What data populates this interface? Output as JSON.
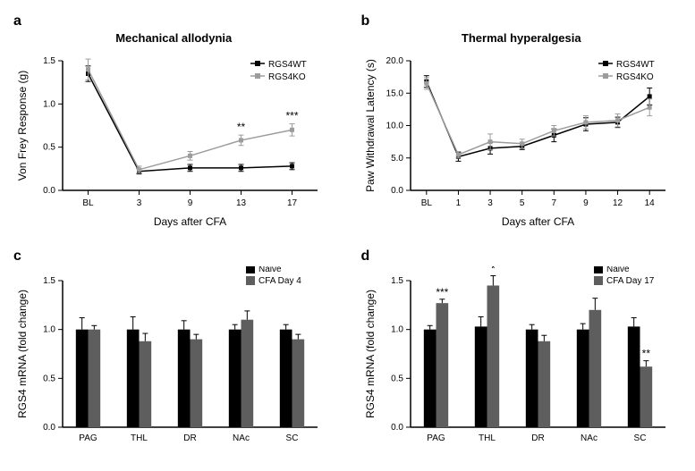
{
  "panelA": {
    "label": "a",
    "title": "Mechanical allodynia",
    "type": "line",
    "xlabel": "Days after CFA",
    "ylabel": "Von Frey Response (g)",
    "x_categories": [
      "BL",
      "3",
      "9",
      "13",
      "17"
    ],
    "ylim": [
      0.0,
      1.5
    ],
    "yticks": [
      0.0,
      0.5,
      1.0,
      1.5
    ],
    "series": [
      {
        "name": "RGS4WT",
        "color": "#000000",
        "marker": "square",
        "y": [
          1.35,
          0.22,
          0.26,
          0.26,
          0.28
        ],
        "err": [
          0.09,
          0.03,
          0.04,
          0.04,
          0.04
        ]
      },
      {
        "name": "RGS4KO",
        "color": "#9c9c9c",
        "marker": "square",
        "y": [
          1.4,
          0.24,
          0.4,
          0.58,
          0.7
        ],
        "err": [
          0.12,
          0.04,
          0.05,
          0.06,
          0.07
        ]
      }
    ],
    "sig": [
      {
        "x_index": 3,
        "label": "**"
      },
      {
        "x_index": 4,
        "label": "***"
      }
    ],
    "legend_pos": "top-right",
    "title_fontsize": 13,
    "label_fontsize": 12,
    "tick_fontsize": 10,
    "line_width": 1.5,
    "marker_size": 5,
    "background_color": "#ffffff"
  },
  "panelB": {
    "label": "b",
    "title": "Thermal hyperalgesia",
    "type": "line",
    "xlabel": "Days after CFA",
    "ylabel": "Paw Withdrawal Latency (s)",
    "x_categories": [
      "BL",
      "1",
      "3",
      "5",
      "7",
      "9",
      "12",
      "14"
    ],
    "ylim": [
      0,
      20
    ],
    "yticks": [
      0,
      5,
      10,
      15,
      20
    ],
    "series": [
      {
        "name": "RGS4WT",
        "color": "#000000",
        "marker": "square",
        "y": [
          16.8,
          5.2,
          6.5,
          6.8,
          8.5,
          10.2,
          10.5,
          14.5
        ],
        "err": [
          0.9,
          0.7,
          0.9,
          0.5,
          1.0,
          1.0,
          0.8,
          1.3
        ]
      },
      {
        "name": "RGS4KO",
        "color": "#9c9c9c",
        "marker": "square",
        "y": [
          16.5,
          5.5,
          7.5,
          7.2,
          9.2,
          10.5,
          10.8,
          12.8
        ],
        "err": [
          0.9,
          0.5,
          1.2,
          0.7,
          0.8,
          1.0,
          1.0,
          1.3
        ]
      }
    ],
    "legend_pos": "top-right",
    "title_fontsize": 13,
    "label_fontsize": 12,
    "tick_fontsize": 10,
    "line_width": 1.5,
    "marker_size": 5,
    "background_color": "#ffffff"
  },
  "panelC": {
    "label": "c",
    "type": "bar",
    "ylabel": "RGS4 mRNA (fold change)",
    "x_categories": [
      "PAG",
      "THL",
      "DR",
      "NAc",
      "SC"
    ],
    "ylim": [
      0.0,
      1.5
    ],
    "yticks": [
      0.0,
      0.5,
      1.0,
      1.5
    ],
    "series": [
      {
        "name": "Naive",
        "color": "#000000",
        "y": [
          1.0,
          1.0,
          1.0,
          1.0,
          1.0
        ],
        "err": [
          0.12,
          0.13,
          0.09,
          0.05,
          0.05
        ]
      },
      {
        "name": "CFA Day 4",
        "color": "#5e5e5e",
        "y": [
          1.0,
          0.88,
          0.9,
          1.1,
          0.9
        ],
        "err": [
          0.04,
          0.08,
          0.05,
          0.09,
          0.05
        ]
      }
    ],
    "legend_pos": "top-right",
    "label_fontsize": 12,
    "tick_fontsize": 10,
    "bar_group_gap": 0.45,
    "bar_width": 0.24,
    "background_color": "#ffffff"
  },
  "panelD": {
    "label": "d",
    "type": "bar",
    "ylabel": "RGS4 mRNA (fold change)",
    "x_categories": [
      "PAG",
      "THL",
      "DR",
      "NAc",
      "SC"
    ],
    "ylim": [
      0.0,
      1.5
    ],
    "yticks": [
      0.0,
      1.0,
      1.5
    ],
    "yticks_full": [
      0.0,
      0.5,
      1.0,
      1.5
    ],
    "series": [
      {
        "name": "Naive",
        "color": "#000000",
        "y": [
          1.0,
          1.03,
          1.0,
          1.0,
          1.03
        ],
        "err": [
          0.04,
          0.1,
          0.05,
          0.06,
          0.09
        ]
      },
      {
        "name": "CFA Day 17",
        "color": "#5e5e5e",
        "y": [
          1.27,
          1.45,
          0.88,
          1.2,
          0.62
        ],
        "err": [
          0.04,
          0.1,
          0.06,
          0.12,
          0.06
        ]
      }
    ],
    "sig": [
      {
        "x_index": 0,
        "series_index": 1,
        "label": "***"
      },
      {
        "x_index": 1,
        "series_index": 1,
        "label": "*"
      },
      {
        "x_index": 4,
        "series_index": 1,
        "label": "**"
      }
    ],
    "legend_pos": "top-right",
    "label_fontsize": 12,
    "tick_fontsize": 10,
    "bar_group_gap": 0.45,
    "bar_width": 0.24,
    "background_color": "#ffffff"
  }
}
